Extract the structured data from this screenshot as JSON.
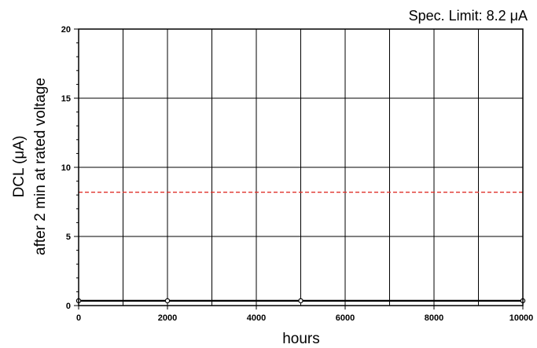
{
  "chart_data": {
    "type": "line",
    "title": "",
    "xlabel": "hours",
    "ylabel_lines": [
      "DCL (μA)",
      "after 2 min at rated voltage"
    ],
    "xlim": [
      0,
      10000
    ],
    "ylim": [
      0,
      20
    ],
    "x_major_ticks": [
      0,
      2000,
      4000,
      6000,
      8000,
      10000
    ],
    "x_tick_labels": [
      "0",
      "2000",
      "4000",
      "6000",
      "8000",
      "10000"
    ],
    "x_grid": [
      1000,
      2000,
      3000,
      4000,
      5000,
      6000,
      7000,
      8000,
      9000
    ],
    "y_major_ticks": [
      0,
      5,
      10,
      15,
      20
    ],
    "y_tick_labels": [
      "0",
      "5",
      "10",
      "15",
      "20"
    ],
    "y_minor_step": 1,
    "grid": true,
    "series": [
      {
        "x": [
          0,
          2000,
          5000,
          10000
        ],
        "y": [
          0.35,
          0.35,
          0.35,
          0.35
        ],
        "color": "#000000",
        "marker": "open-circle"
      }
    ],
    "reference_lines": [
      {
        "y": 8.2,
        "color": "#e0312b",
        "style": "dashed",
        "label": "Spec. Limit: 8.2 μA"
      }
    ]
  }
}
